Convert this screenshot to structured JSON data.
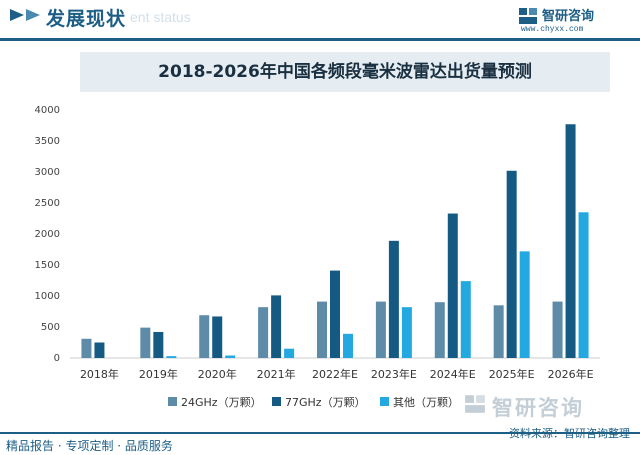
{
  "header": {
    "title": "发展现状",
    "subtitle": "ent status",
    "brand_name": "智研咨询",
    "brand_url": "www.chyxx.com"
  },
  "chart_data": {
    "type": "bar",
    "title": "2018-2026年中国各频段毫米波雷达出货量预测",
    "categories": [
      "2018年",
      "2019年",
      "2020年",
      "2021年",
      "2022年E",
      "2023年E",
      "2024年E",
      "2025年E",
      "2026年E"
    ],
    "series": [
      {
        "name": "24GHz（万颗）",
        "color": "#5e8ca8",
        "values": [
          310,
          490,
          690,
          820,
          910,
          910,
          900,
          850,
          910
        ]
      },
      {
        "name": "77GHz（万颗）",
        "color": "#145a82",
        "values": [
          250,
          420,
          670,
          1010,
          1410,
          1890,
          2330,
          3020,
          3770
        ]
      },
      {
        "name": "其他（万颗）",
        "color": "#23a8e0",
        "values": [
          0,
          30,
          40,
          150,
          390,
          820,
          1240,
          1720,
          2350
        ]
      }
    ],
    "yticks": [
      0,
      500,
      1000,
      1500,
      2000,
      2500,
      3000,
      3500,
      4000
    ],
    "ylim": [
      0,
      4000
    ],
    "grid": false,
    "legend_position": "bottom"
  },
  "footer": {
    "left": "精品报告 · 专项定制 · 品质服务",
    "right": "资料来源：智研咨询整理",
    "watermark": "智研咨询"
  }
}
